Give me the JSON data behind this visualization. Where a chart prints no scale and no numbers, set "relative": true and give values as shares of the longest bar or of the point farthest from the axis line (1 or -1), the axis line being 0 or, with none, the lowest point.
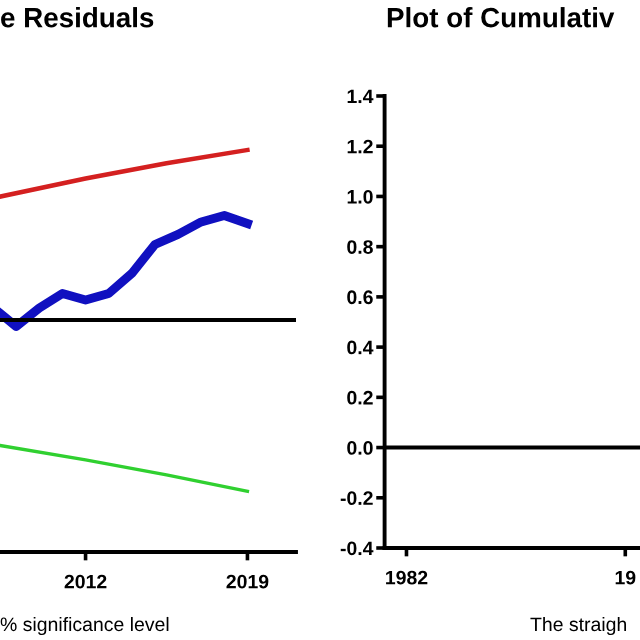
{
  "chart_data": [
    {
      "type": "line",
      "title": "e Residuals",
      "relative": true,
      "tick_labels": "x",
      "grid": false,
      "legend": false,
      "xlim": [
        2008.3,
        2021.1
      ],
      "xticks": [
        2012,
        2019
      ],
      "series": [
        {
          "color": "#d42020",
          "x": [
            2008.3,
            2012,
            2015.5,
            2019
          ],
          "values": [
            0.884,
            0.929,
            0.967,
            1.0
          ]
        },
        {
          "color": "#1010c0",
          "x": [
            2008.3,
            2009,
            2010,
            2011,
            2012,
            2013,
            2014,
            2015,
            2016,
            2017,
            2018,
            2019
          ],
          "values": [
            0.594,
            0.561,
            0.607,
            0.643,
            0.627,
            0.643,
            0.693,
            0.765,
            0.79,
            0.821,
            0.837,
            0.817
          ]
        },
        {
          "color": "#30d030",
          "x": [
            2008.3,
            2012,
            2015.5,
            2019
          ],
          "values": [
            0.265,
            0.229,
            0.192,
            0.151
          ]
        }
      ],
      "ref_lines": [
        {
          "axis": "y",
          "value": 0.577,
          "color": "#000000"
        }
      ],
      "annotations": [
        "% significance level"
      ]
    },
    {
      "type": "line",
      "title": "Plot of Cumulativ",
      "grid": false,
      "legend": false,
      "categories": [
        "1982",
        "19"
      ],
      "ylim": [
        -0.4,
        1.4
      ],
      "yticks": [
        {
          "value": -0.4,
          "label": "-0.4"
        },
        {
          "value": -0.2,
          "label": "-0.2"
        },
        {
          "value": 0.0,
          "label": "0.0"
        },
        {
          "value": 0.2,
          "label": "0.2"
        },
        {
          "value": 0.4,
          "label": "0.4"
        },
        {
          "value": 0.6,
          "label": "0.6"
        },
        {
          "value": 0.8,
          "label": "0.8"
        },
        {
          "value": 1.0,
          "label": "1.0"
        },
        {
          "value": 1.2,
          "label": "1.2"
        },
        {
          "value": 1.4,
          "label": "1.4"
        }
      ],
      "ref_lines": [
        {
          "axis": "y",
          "value": 0.0,
          "color": "#000000"
        }
      ],
      "annotations": [
        "The straigh"
      ]
    }
  ]
}
